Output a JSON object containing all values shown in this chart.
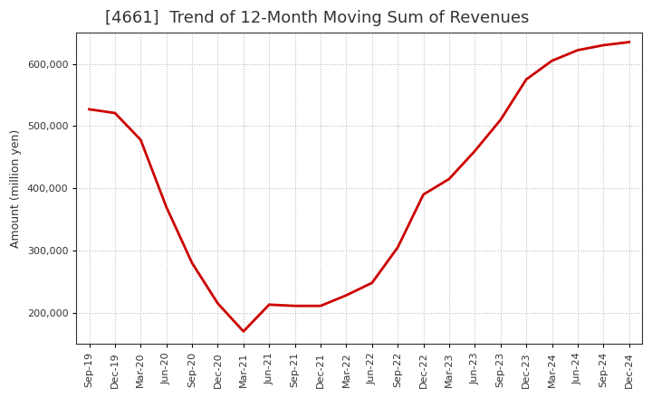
{
  "title": "[4661]  Trend of 12-Month Moving Sum of Revenues",
  "ylabel": "Amount (million yen)",
  "line_color": "#cc0000",
  "background_color": "#ffffff",
  "plot_bg_color": "#ffffff",
  "grid_color": "#bbbbbb",
  "title_color": "#333333",
  "x_labels": [
    "Sep-19",
    "Dec-19",
    "Mar-20",
    "Jun-20",
    "Sep-20",
    "Dec-20",
    "Mar-21",
    "Jun-21",
    "Sep-21",
    "Dec-21",
    "Mar-22",
    "Jun-22",
    "Sep-22",
    "Dec-22",
    "Mar-23",
    "Jun-23",
    "Sep-23",
    "Dec-23",
    "Mar-24",
    "Jun-24",
    "Sep-24",
    "Dec-24"
  ],
  "values": [
    527000,
    521000,
    478000,
    370000,
    280000,
    215000,
    170000,
    213000,
    211000,
    211000,
    228000,
    248000,
    305000,
    390000,
    415000,
    460000,
    510000,
    575000,
    605000,
    622000,
    630000,
    635000
  ],
  "ylim": [
    150000,
    650000
  ],
  "yticks": [
    200000,
    300000,
    400000,
    500000,
    600000
  ],
  "title_fontsize": 13,
  "axis_fontsize": 9,
  "tick_fontsize": 8,
  "line_width": 2.0
}
